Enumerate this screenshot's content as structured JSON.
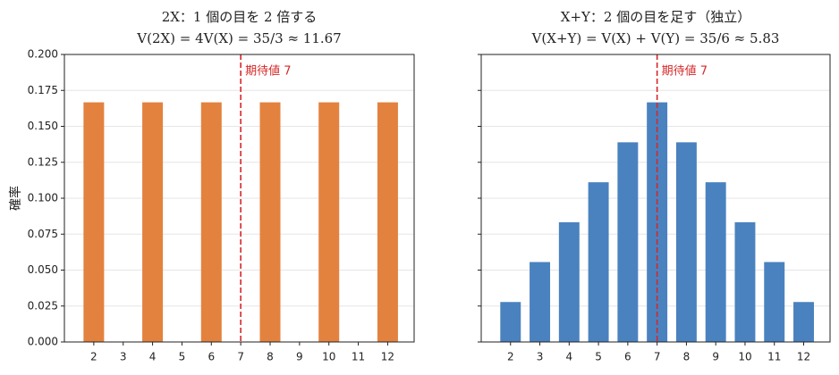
{
  "chart_data": [
    {
      "type": "bar",
      "title": "2X：1 個の目を 2 倍する",
      "subtitle": "V(2X) = 4V(X) = 35/3 ≈ 11.67",
      "ylabel": "確率",
      "color": "#e3823f",
      "x": [
        2,
        4,
        6,
        8,
        10,
        12
      ],
      "values": [
        0.1667,
        0.1667,
        0.1667,
        0.1667,
        0.1667,
        0.1667
      ],
      "xlim": [
        1,
        12.9
      ],
      "xticks": [
        2,
        3,
        4,
        5,
        6,
        7,
        8,
        9,
        10,
        11,
        12
      ],
      "ylim": [
        0,
        0.2
      ],
      "yticks": [
        {
          "value": 0,
          "label": "0.000"
        },
        {
          "value": 0.025,
          "label": "0.025"
        },
        {
          "value": 0.05,
          "label": "0.050"
        },
        {
          "value": 0.075,
          "label": "0.075"
        },
        {
          "value": 0.1,
          "label": "0.100"
        },
        {
          "value": 0.125,
          "label": "0.125"
        },
        {
          "value": 0.15,
          "label": "0.150"
        },
        {
          "value": 0.175,
          "label": "0.175"
        },
        {
          "value": 0.2,
          "label": "0.200"
        }
      ],
      "grid": true,
      "vline": 7,
      "vline_color": "#d62728",
      "annotation": "期待値 7"
    },
    {
      "type": "bar",
      "title": "X+Y：2 個の目を足す（独立）",
      "subtitle": "V(X+Y) = V(X) + V(Y) = 35/6 ≈ 5.83",
      "color": "#4a82bf",
      "x": [
        2,
        3,
        4,
        5,
        6,
        7,
        8,
        9,
        10,
        11,
        12
      ],
      "values": [
        0.0278,
        0.0556,
        0.0833,
        0.1111,
        0.1389,
        0.1667,
        0.1389,
        0.1111,
        0.0833,
        0.0556,
        0.0278
      ],
      "xlim": [
        1,
        12.9
      ],
      "xticks": [
        2,
        3,
        4,
        5,
        6,
        7,
        8,
        9,
        10,
        11,
        12
      ],
      "ylim": [
        0,
        0.2
      ],
      "yticks": [
        0,
        0.025,
        0.05,
        0.075,
        0.1,
        0.125,
        0.15,
        0.175,
        0.2
      ],
      "grid": true,
      "vline": 7,
      "vline_color": "#d62728",
      "annotation": "期待値 7"
    }
  ]
}
